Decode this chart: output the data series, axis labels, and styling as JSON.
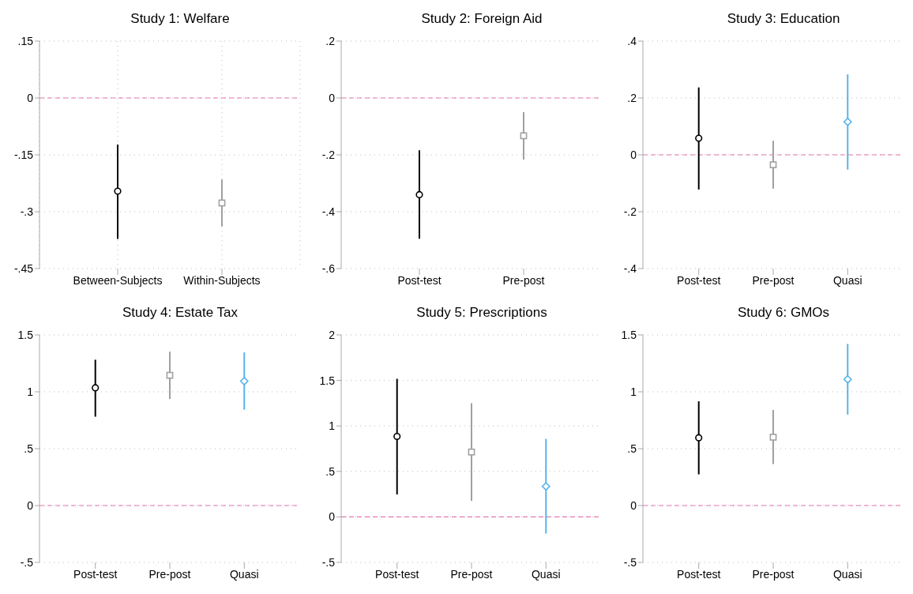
{
  "chart_data": [
    {
      "type": "scatter",
      "title": "Study 1: Welfare",
      "categories": [
        "Between-Subjects",
        "Within-Subjects"
      ],
      "ylim": [
        -0.45,
        0.15
      ],
      "yticks": [
        {
          "value": 0.15,
          "label": ".15"
        },
        0,
        {
          "value": -0.15,
          "label": "-.15"
        },
        {
          "value": -0.3,
          "label": "-.3"
        },
        {
          "value": -0.45,
          "label": "-.45"
        }
      ],
      "grid": true,
      "ref_lines": [
        {
          "axis": "y",
          "value": 0,
          "color": "#e377b0",
          "line_style": "dashed"
        }
      ],
      "series": [
        {
          "color": "#000000",
          "marker": "circle",
          "values": [
            -0.246,
            null
          ],
          "errors": [
            [
              -0.372,
              -0.123
            ],
            null
          ]
        },
        {
          "color": "#a0a0a0",
          "marker": "square",
          "values": [
            null,
            -0.277
          ],
          "errors": [
            null,
            [
              -0.339,
              -0.215
            ]
          ]
        }
      ]
    },
    {
      "type": "scatter",
      "title": "Study 2: Foreign Aid",
      "categories": [
        "Post-test",
        "Pre-post"
      ],
      "ylim": [
        -0.6,
        0.2
      ],
      "yticks": [
        {
          "value": 0.2,
          "label": ".2"
        },
        0,
        {
          "value": -0.2,
          "label": "-.2"
        },
        {
          "value": -0.4,
          "label": "-.4"
        },
        {
          "value": -0.6,
          "label": "-.6"
        }
      ],
      "grid": "y",
      "ref_lines": [
        {
          "axis": "y",
          "value": 0,
          "color": "#e377b0",
          "line_style": "dashed"
        }
      ],
      "series": [
        {
          "color": "#000000",
          "marker": "circle",
          "values": [
            -0.34,
            null
          ],
          "errors": [
            [
              -0.495,
              -0.184
            ],
            null
          ]
        },
        {
          "color": "#a0a0a0",
          "marker": "square",
          "values": [
            null,
            -0.133
          ],
          "errors": [
            null,
            [
              -0.217,
              -0.05
            ]
          ]
        }
      ]
    },
    {
      "type": "scatter",
      "title": "Study 3: Education",
      "categories": [
        "Post-test",
        "Pre-post",
        "Quasi"
      ],
      "ylim": [
        -0.4,
        0.4
      ],
      "yticks": [
        {
          "value": 0.4,
          "label": ".4"
        },
        {
          "value": 0.2,
          "label": ".2"
        },
        0,
        {
          "value": -0.2,
          "label": "-.2"
        },
        {
          "value": -0.4,
          "label": "-.4"
        }
      ],
      "grid": "y",
      "ref_lines": [
        {
          "axis": "y",
          "value": 0,
          "color": "#e377b0",
          "line_style": "dashed"
        }
      ],
      "series": [
        {
          "color": "#000000",
          "marker": "circle",
          "values": [
            0.058,
            null,
            null
          ],
          "errors": [
            [
              -0.122,
              0.237
            ],
            null,
            null
          ]
        },
        {
          "color": "#a0a0a0",
          "marker": "square",
          "values": [
            null,
            -0.035,
            null
          ],
          "errors": [
            null,
            [
              -0.119,
              0.049
            ],
            null
          ]
        },
        {
          "color": "#56b4e9",
          "marker": "diamond",
          "values": [
            null,
            null,
            0.116
          ],
          "errors": [
            null,
            null,
            [
              -0.052,
              0.283
            ]
          ]
        }
      ]
    },
    {
      "type": "scatter",
      "title": "Study 4: Estate Tax",
      "categories": [
        "Post-test",
        "Pre-post",
        "Quasi"
      ],
      "ylim": [
        -0.5,
        1.5
      ],
      "yticks": [
        1.5,
        1,
        {
          "value": 0.5,
          "label": ".5"
        },
        0,
        {
          "value": -0.5,
          "label": "-.5"
        }
      ],
      "grid": "y",
      "ref_lines": [
        {
          "axis": "y",
          "value": 0,
          "color": "#e377b0",
          "line_style": "dashed"
        }
      ],
      "series": [
        {
          "color": "#000000",
          "marker": "circle",
          "values": [
            1.035,
            null,
            null
          ],
          "errors": [
            [
              0.781,
              1.282
            ],
            null,
            null
          ]
        },
        {
          "color": "#a0a0a0",
          "marker": "square",
          "values": [
            null,
            1.145,
            null
          ],
          "errors": [
            null,
            [
              0.935,
              1.353
            ],
            null
          ]
        },
        {
          "color": "#56b4e9",
          "marker": "diamond",
          "values": [
            null,
            null,
            1.094
          ],
          "errors": [
            null,
            null,
            [
              0.843,
              1.346
            ]
          ]
        }
      ]
    },
    {
      "type": "scatter",
      "title": "Study 5: Prescriptions",
      "categories": [
        "Post-test",
        "Pre-post",
        "Quasi"
      ],
      "ylim": [
        -0.5,
        2
      ],
      "yticks": [
        2,
        1.5,
        1,
        {
          "value": 0.5,
          "label": ".5"
        },
        0,
        {
          "value": -0.5,
          "label": "-.5"
        }
      ],
      "grid": "y",
      "ref_lines": [
        {
          "axis": "y",
          "value": 0,
          "color": "#e377b0",
          "line_style": "dashed"
        }
      ],
      "series": [
        {
          "color": "#000000",
          "marker": "circle",
          "values": [
            0.884,
            null,
            null
          ],
          "errors": [
            [
              0.247,
              1.518
            ],
            null,
            null
          ]
        },
        {
          "color": "#a0a0a0",
          "marker": "square",
          "values": [
            null,
            0.713,
            null
          ],
          "errors": [
            null,
            [
              0.177,
              1.25
            ],
            null
          ]
        },
        {
          "color": "#56b4e9",
          "marker": "diamond",
          "values": [
            null,
            null,
            0.335
          ],
          "errors": [
            null,
            null,
            [
              -0.183,
              0.857
            ]
          ]
        }
      ]
    },
    {
      "type": "scatter",
      "title": "Study 6: GMOs",
      "categories": [
        "Post-test",
        "Pre-post",
        "Quasi"
      ],
      "ylim": [
        -0.5,
        1.5
      ],
      "yticks": [
        1.5,
        1,
        {
          "value": 0.5,
          "label": ".5"
        },
        0,
        {
          "value": -0.5,
          "label": "-.5"
        }
      ],
      "grid": "y",
      "ref_lines": [
        {
          "axis": "y",
          "value": 0,
          "color": "#e377b0",
          "line_style": "dashed"
        }
      ],
      "series": [
        {
          "color": "#000000",
          "marker": "circle",
          "values": [
            0.596,
            null,
            null
          ],
          "errors": [
            [
              0.274,
              0.916
            ],
            null,
            null
          ]
        },
        {
          "color": "#a0a0a0",
          "marker": "square",
          "values": [
            null,
            0.601,
            null
          ],
          "errors": [
            null,
            [
              0.364,
              0.84
            ],
            null
          ]
        },
        {
          "color": "#56b4e9",
          "marker": "diamond",
          "values": [
            null,
            null,
            1.109
          ],
          "errors": [
            null,
            null,
            [
              0.799,
              1.421
            ]
          ]
        }
      ]
    }
  ]
}
